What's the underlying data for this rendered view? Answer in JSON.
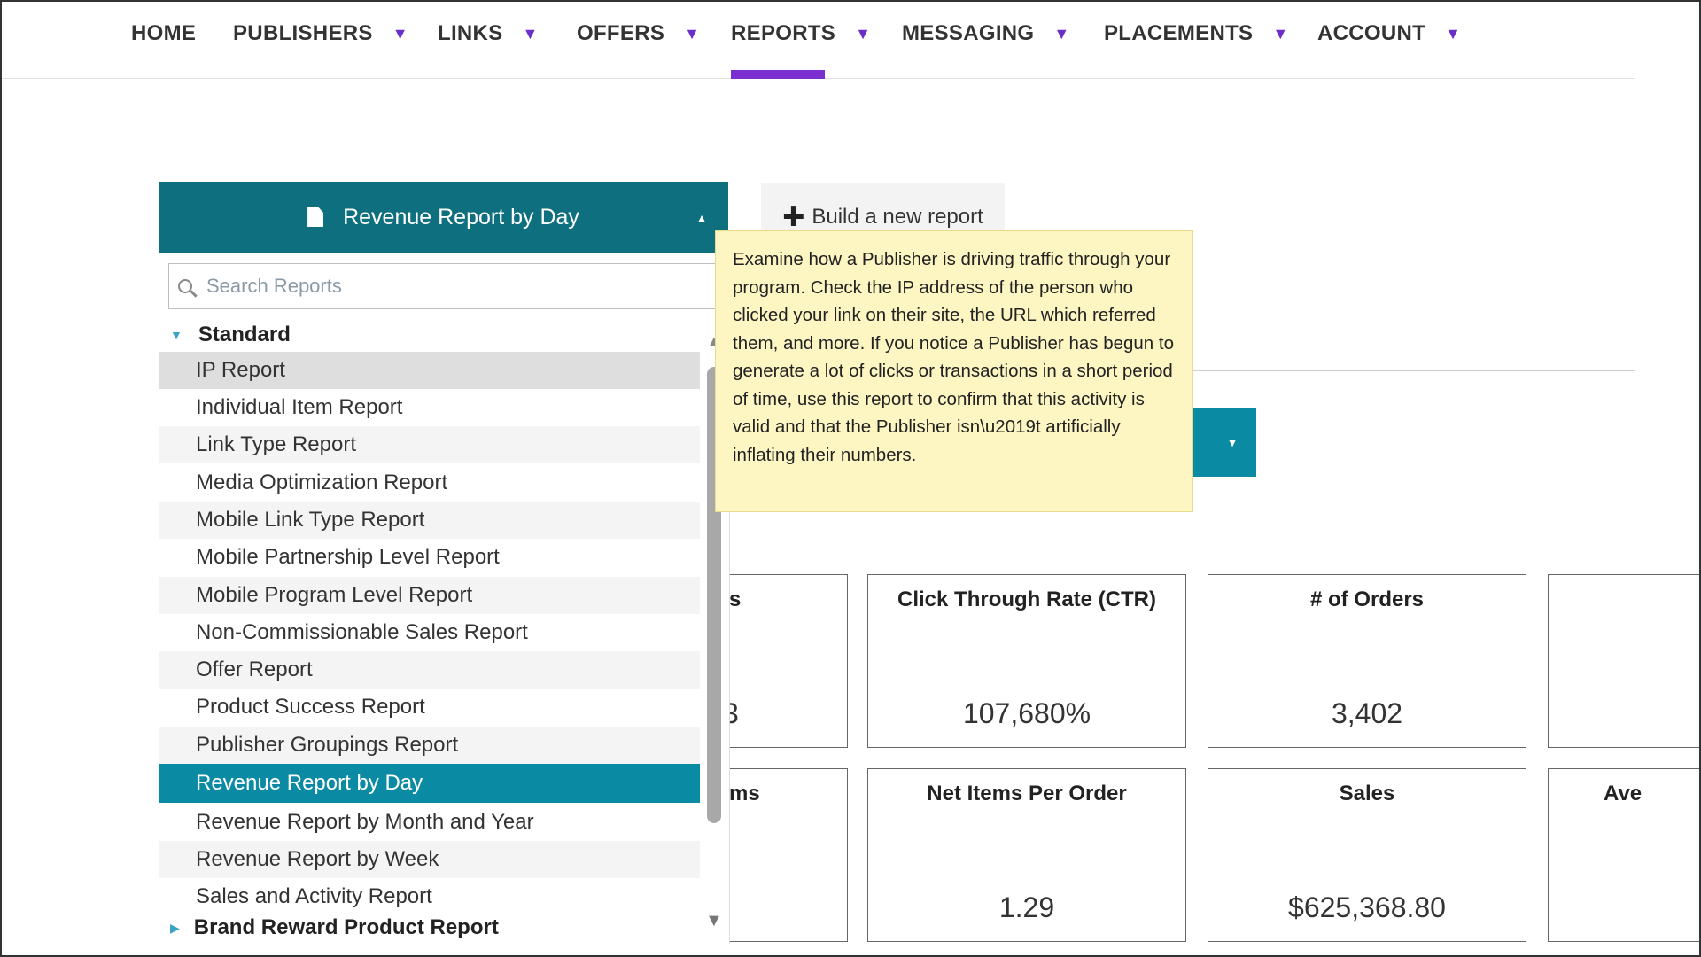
{
  "nav": {
    "items": [
      {
        "label": "HOME",
        "caret": false
      },
      {
        "label": "PUBLISHERS",
        "caret": true
      },
      {
        "label": "LINKS",
        "caret": true
      },
      {
        "label": "OFFERS",
        "caret": true
      },
      {
        "label": "REPORTS",
        "caret": true,
        "active": true
      },
      {
        "label": "MESSAGING",
        "caret": true
      },
      {
        "label": "PLACEMENTS",
        "caret": true
      },
      {
        "label": "ACCOUNT",
        "caret": true
      }
    ],
    "caret_glyph": "▼",
    "accent_color": "#7b2fd0"
  },
  "report_picker": {
    "selected_label": "Revenue Report by Day",
    "search_placeholder": "Search Reports",
    "groups": [
      {
        "label": "Standard",
        "expanded": true
      },
      {
        "label": "Brand Reward Product Report",
        "expanded": false
      }
    ],
    "items": [
      "IP Report",
      "Individual Item Report",
      "Link Type Report",
      "Media Optimization Report",
      "Mobile Link Type Report",
      "Mobile Partnership Level Report",
      "Mobile Program Level Report",
      "Non-Commissionable Sales Report",
      "Offer Report",
      "Product Success Report",
      "Publisher Groupings Report",
      "Revenue Report by Day",
      "Revenue Report by Month and Year",
      "Revenue Report by Week",
      "Sales and Activity Report"
    ],
    "selected_index": 11,
    "hover_index": 0,
    "header_color": "#0e6f7f",
    "selected_color": "#0a8aa3"
  },
  "build_button": {
    "label": "Build a new report"
  },
  "tooltip": {
    "text": "Examine how a Publisher is driving traffic through your program. Check the IP address of the person who clicked your link on their site, the URL which referred them, and more. If you notice a Publisher has begun to generate a lot of clicks or transactions in a short period of time, use this report to confirm that this activity is valid and that the Publisher isn\\u2019t artificially inflating their numbers."
  },
  "metrics": {
    "row1": [
      {
        "title": "s",
        "value": "3"
      },
      {
        "title": "Click Through Rate (CTR)",
        "value": "107,680%"
      },
      {
        "title": "# of Orders",
        "value": "3,402"
      },
      {
        "title": "",
        "value": ""
      }
    ],
    "row2": [
      {
        "title": "ms",
        "value": ""
      },
      {
        "title": "Net Items Per Order",
        "value": "1.29"
      },
      {
        "title": "Sales",
        "value": "$625,368.80"
      },
      {
        "title": "Ave",
        "value": ""
      }
    ]
  }
}
